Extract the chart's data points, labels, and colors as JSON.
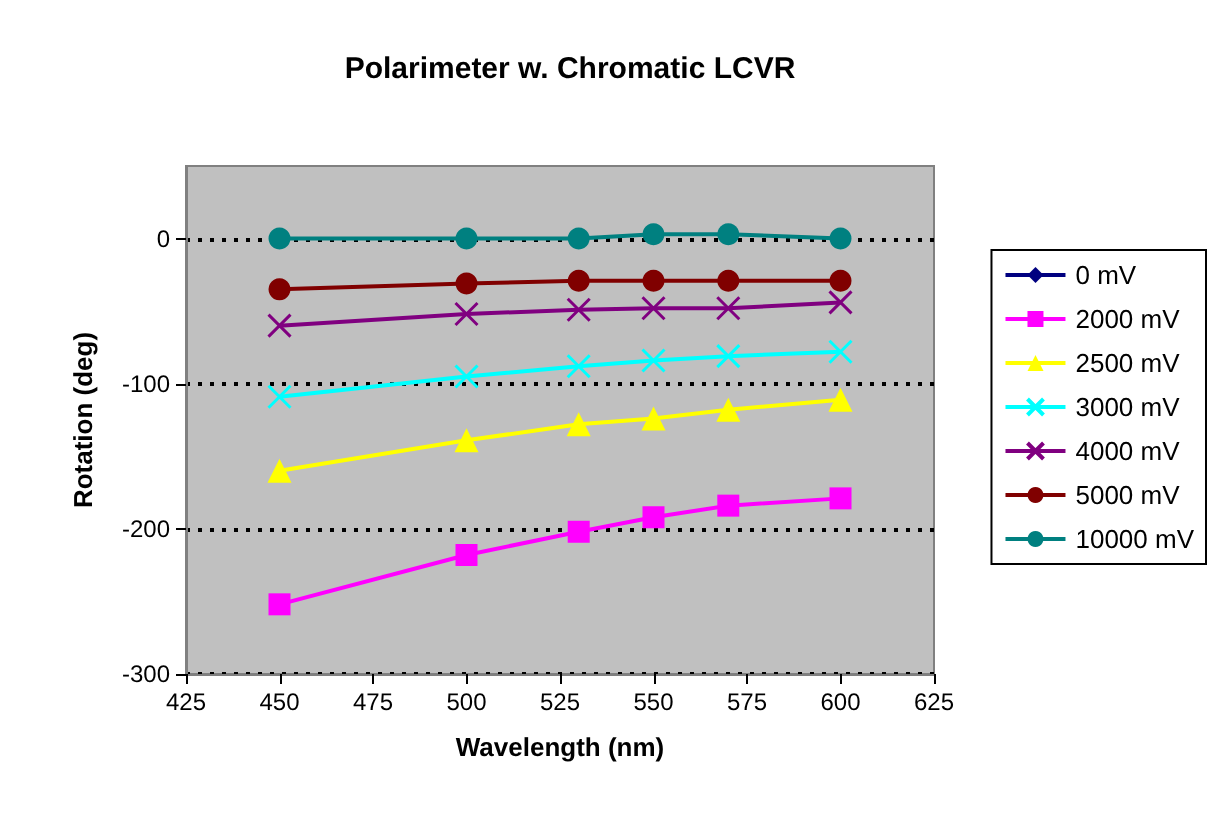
{
  "chart_data": {
    "type": "line",
    "title": "Polarimeter w. Chromatic LCVR",
    "xlabel": "Wavelength (nm)",
    "ylabel": "Rotation (deg)",
    "x": [
      450,
      500,
      530,
      550,
      570,
      600
    ],
    "xlim": [
      425,
      625
    ],
    "xticks": [
      425,
      450,
      475,
      500,
      525,
      550,
      575,
      600,
      625
    ],
    "ylim": [
      -300,
      50
    ],
    "yticks": [
      -300,
      -200,
      -100,
      0
    ],
    "grid": "y",
    "legend": "right",
    "series": [
      {
        "name": "0 mV",
        "color": "#000080",
        "marker": "diamond",
        "values": [
          null,
          null,
          null,
          null,
          null,
          null
        ]
      },
      {
        "name": "2000 mV",
        "color": "#ff00ff",
        "marker": "square",
        "values": [
          -252,
          -218,
          -202,
          -192,
          -184,
          -179
        ]
      },
      {
        "name": "2500 mV",
        "color": "#ffff00",
        "marker": "triangle",
        "values": [
          -160,
          -139,
          -128,
          -124,
          -118,
          -111
        ]
      },
      {
        "name": "3000 mV",
        "color": "#00ffff",
        "marker": "cross",
        "values": [
          -109,
          -95,
          -88,
          -84,
          -81,
          -78
        ]
      },
      {
        "name": "4000 mV",
        "color": "#800080",
        "marker": "cross",
        "values": [
          -60,
          -52,
          -49,
          -48,
          -48,
          -44
        ]
      },
      {
        "name": "5000 mV",
        "color": "#800000",
        "marker": "circle",
        "values": [
          -35,
          -31,
          -29,
          -29,
          -29,
          -29
        ]
      },
      {
        "name": "10000 mV",
        "color": "#008080",
        "marker": "circle",
        "values": [
          0,
          0,
          0,
          3,
          3,
          0
        ]
      }
    ]
  }
}
